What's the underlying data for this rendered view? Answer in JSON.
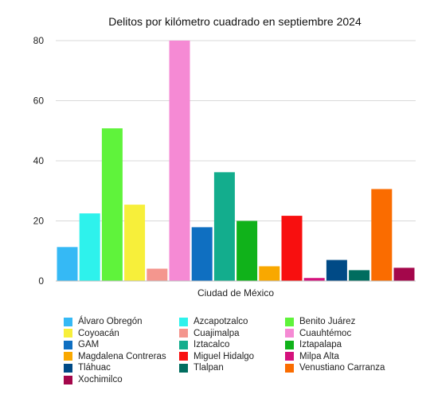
{
  "chart_data": {
    "type": "bar",
    "title": "Delitos por kilómetro cuadrado en septiembre 2024",
    "xlabel": "Ciudad de México",
    "ylabel": "",
    "ylim": [
      0,
      80
    ],
    "yticks": [
      0,
      20,
      40,
      60,
      80
    ],
    "grid": true,
    "legend_position": "bottom",
    "categories": [
      "Ciudad de México"
    ],
    "series": [
      {
        "name": "Álvaro Obregón",
        "values": [
          11.3
        ],
        "color": "#35b9f5"
      },
      {
        "name": "Azcapotzalco",
        "values": [
          22.5
        ],
        "color": "#2ef2ec"
      },
      {
        "name": "Benito Juárez",
        "values": [
          50.8
        ],
        "color": "#5ff33b"
      },
      {
        "name": "Coyoacán",
        "values": [
          25.4
        ],
        "color": "#f7ef3a"
      },
      {
        "name": "Cuajimalpa",
        "values": [
          4.1
        ],
        "color": "#f4968e"
      },
      {
        "name": "Cuauhtémoc",
        "values": [
          80.0
        ],
        "color": "#f58ad4"
      },
      {
        "name": "GAM",
        "values": [
          17.9
        ],
        "color": "#0f6fc1"
      },
      {
        "name": "Iztacalco",
        "values": [
          36.2
        ],
        "color": "#13ad8d"
      },
      {
        "name": "Iztapalapa",
        "values": [
          20.0
        ],
        "color": "#10b21a"
      },
      {
        "name": "Magdalena Contreras",
        "values": [
          4.9
        ],
        "color": "#f9a800"
      },
      {
        "name": "Miguel Hidalgo",
        "values": [
          21.7
        ],
        "color": "#f80f0f"
      },
      {
        "name": "Milpa Alta",
        "values": [
          1.0
        ],
        "color": "#d4117c"
      },
      {
        "name": "Tláhuac",
        "values": [
          7.0
        ],
        "color": "#004a86"
      },
      {
        "name": "Tlalpan",
        "values": [
          3.6
        ],
        "color": "#006d5f"
      },
      {
        "name": "Venustiano Carranza",
        "values": [
          30.6
        ],
        "color": "#fa6c00"
      },
      {
        "name": "Xochimilco",
        "values": [
          4.4
        ],
        "color": "#a4074b"
      }
    ]
  }
}
